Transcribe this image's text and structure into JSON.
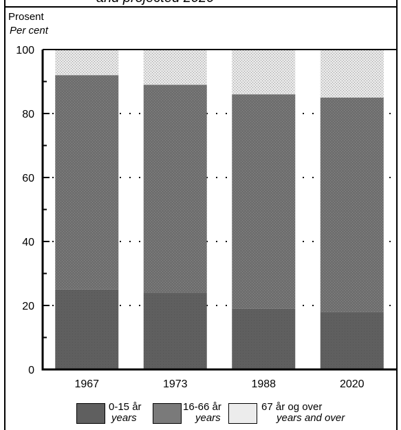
{
  "page": {
    "title_partial": "and projected 2020",
    "ylabel_line1": "Prosent",
    "ylabel_line2": "Per cent"
  },
  "colors": {
    "young": "#5f5f5f",
    "working": "#6e6e6e",
    "old": "#d9d9d9",
    "background": "#ffffff"
  },
  "chart_data": {
    "type": "bar",
    "stacked": true,
    "categories": [
      "1967",
      "1973",
      "1988",
      "2020"
    ],
    "series": [
      {
        "name": "0-15 år years",
        "values": [
          25,
          24,
          19,
          18
        ]
      },
      {
        "name": "16-66 år years",
        "values": [
          67,
          65,
          67,
          67
        ]
      },
      {
        "name": "67 år og over years and over",
        "values": [
          8,
          11,
          14,
          15
        ]
      }
    ],
    "ylim": [
      0,
      100
    ],
    "yticks": [
      0,
      20,
      40,
      60,
      80,
      100
    ],
    "grid": true,
    "legend_position": "bottom"
  },
  "legend": [
    {
      "label1": "0-15 år",
      "label2": "years"
    },
    {
      "label1": "16-66 år",
      "label2": "years"
    },
    {
      "label1": "67 år og over",
      "label2": "years and over"
    }
  ]
}
